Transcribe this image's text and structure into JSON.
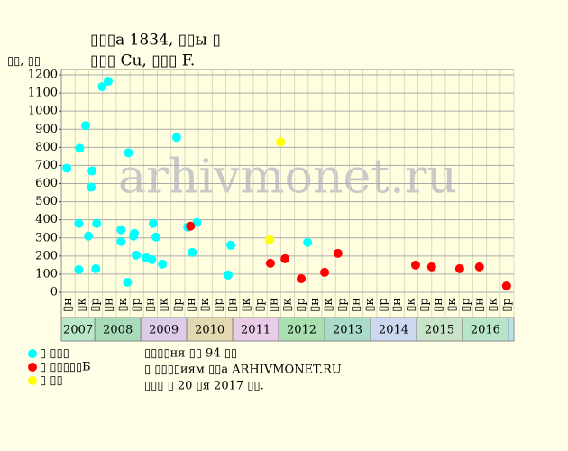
{
  "chart_data": {
    "type": "scatter",
    "title": "▯▯▯а 1834, ▯▯ы ▯",
    "subtitle": "▯▯▯ Cu, ▯▯▯ F.",
    "y_label": "▯▯, ▯▯",
    "watermark": "arhivmonet.ru",
    "xlim": [
      2007.27,
      2017.12
    ],
    "ylim": [
      0,
      1230
    ],
    "yticks": [
      0,
      100,
      200,
      300,
      400,
      500,
      600,
      700,
      800,
      900,
      1000,
      1100,
      1200
    ],
    "grid": true,
    "slot_labels": [
      "▯н",
      "▯к",
      "▯р",
      "▯н",
      "▯к",
      "▯р",
      "▯н",
      "▯к",
      "▯р",
      "▯н",
      "▯к",
      "▯р",
      "▯н",
      "▯к",
      "▯р",
      "▯н",
      "▯к",
      "▯р",
      "▯н",
      "▯к",
      "▯р",
      "▯н",
      "▯к",
      "▯р",
      "▯н",
      "▯к",
      "▯р",
      "▯н",
      "▯к",
      "▯р",
      "▯н",
      "▯к",
      "▯р"
    ],
    "years": [
      2007,
      2008,
      2009,
      2010,
      2011,
      2012,
      2013,
      2014,
      2015,
      2016
    ],
    "year_colors": [
      "#b8e8c8",
      "#a8dcb8",
      "#dccce8",
      "#e4d8b0",
      "#e8cce8",
      "#a8e0b0",
      "#a8dcc8",
      "#ccd8f0",
      "#c8e4c8",
      "#b8e4c8"
    ],
    "series": [
      {
        "name": "▯ ▯▯▯",
        "color": "#00ffff",
        "x": [
          2007.39,
          2007.65,
          2007.65,
          2007.67,
          2007.8,
          2007.86,
          2007.92,
          2007.94,
          2008.04,
          2008.02,
          2008.16,
          2008.29,
          2008.57,
          2008.57,
          2008.71,
          2008.73,
          2008.84,
          2008.86,
          2008.9,
          2009.12,
          2009.24,
          2009.27,
          2009.33,
          2009.47,
          2009.78,
          2010.02,
          2010.12,
          2010.22,
          2010.9,
          2010.96,
          2012.63
        ],
        "values": [
          685,
          380,
          125,
          795,
          920,
          310,
          580,
          670,
          380,
          130,
          1135,
          1165,
          345,
          280,
          55,
          770,
          310,
          325,
          205,
          190,
          180,
          380,
          305,
          155,
          855,
          360,
          220,
          385,
          95,
          260,
          275
        ]
      },
      {
        "name": "▯ ▯▯▯▯▯Б",
        "color": "#ff0000",
        "x": [
          2010.08,
          2011.82,
          2012.14,
          2012.49,
          2013.0,
          2013.29,
          2014.98,
          2015.33,
          2015.94,
          2016.37,
          2016.96
        ],
        "values": [
          365,
          160,
          185,
          75,
          110,
          215,
          150,
          140,
          130,
          140,
          35
        ]
      },
      {
        "name": "▯ ▯▯",
        "color": "#ffff00",
        "x": [
          2011.8,
          2012.04
        ],
        "values": [
          290,
          830
        ]
      }
    ],
    "notes": [
      "▯▯▯▯ня ▯▯ 94 ▯▯",
      "▯ ▯▯▯▯иям ▯▯а ARHIVMONET.RU",
      "▯▯▯ ▯ 20 ▯я 2017 ▯▯."
    ]
  }
}
